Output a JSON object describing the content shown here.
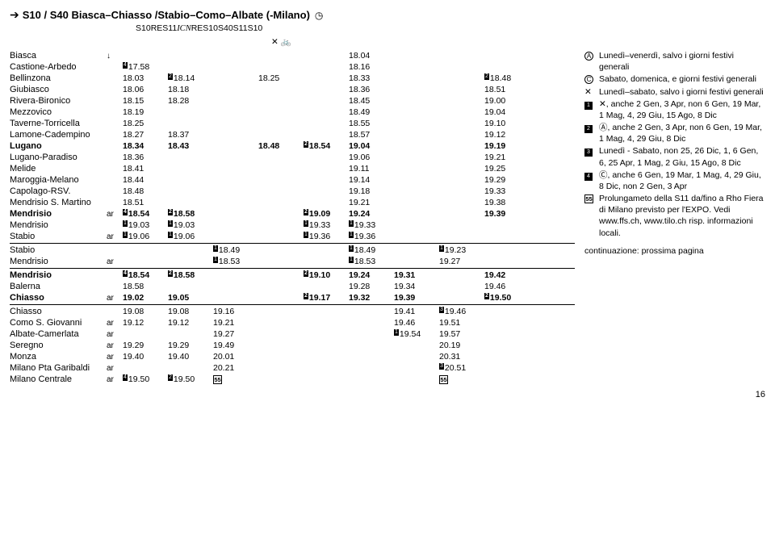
{
  "header": {
    "title": "S10 / S40 Biasca–Chiasso /Stabio–Como–Albate (-Milano)"
  },
  "services": [
    "S10",
    "RE",
    "S11",
    "ICN",
    "RE",
    "S10",
    "S40",
    "S11",
    "S10"
  ],
  "stations": [
    {
      "n": "Biasca",
      "ar": "",
      "c": [
        "",
        "",
        "",
        "",
        "",
        "18.04",
        "",
        "",
        ""
      ],
      "arrow": true
    },
    {
      "n": "Castione-Arbedo",
      "ar": "",
      "c": [
        "17.58",
        "",
        "",
        "",
        "",
        "18.16",
        "",
        "",
        ""
      ],
      "p": {
        "0": "4"
      }
    },
    {
      "n": "Bellinzona",
      "ar": "",
      "c": [
        "18.03",
        "18.14",
        "",
        "18.25",
        "",
        "18.33",
        "",
        "",
        "18.48"
      ],
      "p": {
        "1": "2",
        "8": "2"
      }
    },
    {
      "n": "Giubiasco",
      "ar": "",
      "c": [
        "18.06",
        "18.18",
        "",
        "",
        "",
        "18.36",
        "",
        "",
        "18.51"
      ]
    },
    {
      "n": "Rivera-Bironico",
      "ar": "",
      "c": [
        "18.15",
        "18.28",
        "",
        "",
        "",
        "18.45",
        "",
        "",
        "19.00"
      ]
    },
    {
      "n": "Mezzovico",
      "ar": "",
      "c": [
        "18.19",
        "",
        "",
        "",
        "",
        "18.49",
        "",
        "",
        "19.04"
      ]
    },
    {
      "n": "Taverne-Torricella",
      "ar": "",
      "c": [
        "18.25",
        "",
        "",
        "",
        "",
        "18.55",
        "",
        "",
        "19.10"
      ]
    },
    {
      "n": "Lamone-Cadempino",
      "ar": "",
      "c": [
        "18.27",
        "18.37",
        "",
        "",
        "",
        "18.57",
        "",
        "",
        "19.12"
      ]
    },
    {
      "n": "Lugano",
      "ar": "",
      "c": [
        "18.34",
        "18.43",
        "",
        "18.48",
        "18.54",
        "19.04",
        "",
        "",
        "19.19"
      ],
      "bold": true,
      "p": {
        "4": "2"
      }
    },
    {
      "n": "Lugano-Paradiso",
      "ar": "",
      "c": [
        "18.36",
        "",
        "",
        "",
        "",
        "19.06",
        "",
        "",
        "19.21"
      ]
    },
    {
      "n": "Melide",
      "ar": "",
      "c": [
        "18.41",
        "",
        "",
        "",
        "",
        "19.11",
        "",
        "",
        "19.25"
      ]
    },
    {
      "n": "Maroggia-Melano",
      "ar": "",
      "c": [
        "18.44",
        "",
        "",
        "",
        "",
        "19.14",
        "",
        "",
        "19.29"
      ]
    },
    {
      "n": "Capolago-RSV.",
      "ar": "",
      "c": [
        "18.48",
        "",
        "",
        "",
        "",
        "19.18",
        "",
        "",
        "19.33"
      ]
    },
    {
      "n": "Mendrisio S. Martino",
      "ar": "",
      "c": [
        "18.51",
        "",
        "",
        "",
        "",
        "19.21",
        "",
        "",
        "19.38"
      ]
    },
    {
      "n": "Mendrisio",
      "ar": "ar",
      "c": [
        "18.54",
        "18.58",
        "",
        "",
        "19.09",
        "19.24",
        "",
        "",
        "19.39"
      ],
      "bold": true,
      "p": {
        "0": "4",
        "1": "2",
        "4": "2"
      }
    },
    {
      "n": "Mendrisio",
      "ar": "",
      "c": [
        "19.03",
        "19.03",
        "",
        "",
        "19.33",
        "19.33",
        "",
        "",
        ""
      ],
      "p": {
        "0": "1",
        "1": "1",
        "4": "1",
        "5": "1"
      }
    },
    {
      "n": "Stabio",
      "ar": "ar",
      "c": [
        "19.06",
        "19.06",
        "",
        "",
        "19.36",
        "19.36",
        "",
        "",
        ""
      ],
      "p": {
        "0": "1",
        "1": "1",
        "4": "1",
        "5": "1"
      }
    },
    {
      "n": "Stabio",
      "ar": "",
      "c": [
        "",
        "",
        "18.49",
        "",
        "",
        "18.49",
        "",
        "19.23",
        ""
      ],
      "p": {
        "2": "1",
        "5": "1",
        "7": "1"
      }
    },
    {
      "n": "Mendrisio",
      "ar": "ar",
      "c": [
        "",
        "",
        "18.53",
        "",
        "",
        "18.53",
        "",
        "19.27",
        ""
      ],
      "p": {
        "2": "1",
        "5": "1"
      }
    },
    {
      "n": "Mendrisio",
      "ar": "",
      "c": [
        "18.54",
        "18.58",
        "",
        "",
        "19.10",
        "19.24",
        "19.31",
        "",
        "19.42"
      ],
      "bold": true,
      "p": {
        "0": "4",
        "1": "2",
        "4": "2"
      }
    },
    {
      "n": "Balerna",
      "ar": "",
      "c": [
        "18.58",
        "",
        "",
        "",
        "",
        "19.28",
        "19.34",
        "",
        "19.46"
      ]
    },
    {
      "n": "Chiasso",
      "ar": "ar",
      "c": [
        "19.02",
        "19.05",
        "",
        "",
        "19.17",
        "19.32",
        "19.39",
        "",
        "19.50"
      ],
      "bold": true,
      "p": {
        "4": "2",
        "8": "2"
      }
    },
    {
      "n": "Chiasso",
      "ar": "",
      "c": [
        "19.08",
        "19.08",
        "19.16",
        "",
        "",
        "",
        "19.41",
        "19.46",
        ""
      ],
      "p": {
        "7": "3"
      }
    },
    {
      "n": "Como S. Giovanni",
      "ar": "ar",
      "c": [
        "19.12",
        "19.12",
        "19.21",
        "",
        "",
        "",
        "19.46",
        "19.51",
        ""
      ]
    },
    {
      "n": "Albate-Camerlata",
      "ar": "ar",
      "c": [
        "",
        "",
        "19.27",
        "",
        "",
        "",
        "19.54",
        "19.57",
        ""
      ],
      "p": {
        "6": "1"
      }
    },
    {
      "n": "Seregno",
      "ar": "ar",
      "c": [
        "19.29",
        "19.29",
        "19.49",
        "",
        "",
        "",
        "",
        "20.19",
        ""
      ]
    },
    {
      "n": "Monza",
      "ar": "ar",
      "c": [
        "19.40",
        "19.40",
        "20.01",
        "",
        "",
        "",
        "",
        "20.31",
        ""
      ]
    },
    {
      "n": "Milano Pta Garibaldi",
      "ar": "ar",
      "c": [
        "",
        "",
        "20.21",
        "",
        "",
        "",
        "",
        "20.51",
        ""
      ],
      "p": {
        "7": "3"
      }
    },
    {
      "n": "Milano Centrale",
      "ar": "ar",
      "c": [
        "19.50",
        "19.50",
        "55",
        "",
        "",
        "",
        "",
        "55",
        ""
      ],
      "p": {
        "0": "4",
        "1": "2"
      },
      "sq": {
        "2": true,
        "7": true
      }
    }
  ],
  "hrAfter": [
    16,
    18,
    21
  ],
  "notes": [
    {
      "sym": "A",
      "t": "Lunedì–venerdì, salvo i giorni festivi generali",
      "circ": true
    },
    {
      "sym": "C",
      "t": "Sabato, domenica, e giorni festivi generali",
      "circ": true
    },
    {
      "sym": "✕",
      "t": "Lunedì–sabato, salvo i giorni festivi generali",
      "plain": true
    },
    {
      "sym": "1",
      "t": "✕, anche 2 Gen, 3 Apr, non 6 Gen, 19 Mar, 1 Mag, 4, 29 Giu, 15 Ago, 8 Dic",
      "sq": true
    },
    {
      "sym": "2",
      "t": "Ⓐ, anche 2 Gen, 3 Apr, non 6 Gen, 19 Mar, 1 Mag, 4, 29 Giu, 8 Dic",
      "sq": true
    },
    {
      "sym": "3",
      "t": "Lunedì - Sabato, non 25, 26 Dic, 1, 6 Gen, 6, 25 Apr, 1 Mag, 2 Giu, 15 Ago, 8 Dic",
      "sq": true
    },
    {
      "sym": "4",
      "t": "Ⓒ, anche 6 Gen, 19 Mar, 1 Mag, 4, 29 Giu, 8 Dic, non 2 Gen, 3 Apr",
      "sq": true
    },
    {
      "sym": "55",
      "t": "Prolungameto della S11 da/fino a Rho Fiera di Milano previsto per l'EXPO. Vedi www.ffs.ch, www.tilo.ch risp. informazioni locali.",
      "sqout": true
    }
  ],
  "cont": "continuazione: prossima pagina",
  "page": "16"
}
